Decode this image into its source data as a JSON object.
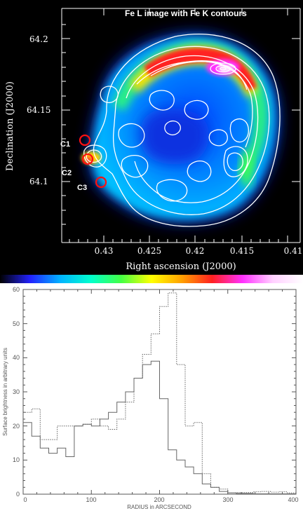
{
  "chart_data": [
    {
      "type": "heatmap",
      "title": "Fe L image with Fe K contours",
      "xlabel": "Right ascension (J2000)",
      "ylabel": "Declination (J2000)",
      "x_ticks": [
        "0.43",
        "0.425",
        "0.42",
        "0.415",
        "0.41"
      ],
      "y_ticks": [
        "64.2",
        "64.15",
        "64.1"
      ],
      "colorscale": [
        "#000000",
        "#2222ff",
        "#00b4ff",
        "#00ffcc",
        "#44ff44",
        "#ffff00",
        "#ffa000",
        "#ff2020",
        "#ff30ff",
        "#ffd0ff",
        "#ffffff"
      ],
      "regions": [
        {
          "label": "C1"
        },
        {
          "label": "C2"
        },
        {
          "label": "C3"
        }
      ]
    },
    {
      "type": "line",
      "xlabel": "RADIUS in ARCSECOND",
      "ylabel": "Surface brightness in arbitrary units",
      "xlim": [
        0,
        400
      ],
      "ylim": [
        0,
        60
      ],
      "x_ticks": [
        "0",
        "100",
        "200",
        "300",
        "400"
      ],
      "y_ticks": [
        "0",
        "10",
        "20",
        "30",
        "40",
        "50",
        "60"
      ],
      "bin_width": 12.5,
      "series": [
        {
          "style": "solid",
          "values": [
            21,
            17,
            13.5,
            12,
            13.5,
            11,
            20,
            20.5,
            20,
            22,
            24,
            27,
            30,
            34,
            38,
            39,
            28,
            13,
            10,
            8,
            6,
            3,
            2,
            0.8,
            0.4,
            0.2,
            0.2,
            0.1,
            0.1,
            0.1,
            0.1,
            0.1
          ]
        },
        {
          "style": "dotted",
          "values": [
            24,
            25,
            16,
            16,
            20,
            20,
            20,
            20.5,
            22,
            20,
            19,
            22,
            27,
            34,
            41,
            47,
            55,
            59,
            38,
            20,
            21,
            6,
            2,
            1.5,
            0.4,
            0.5,
            0.5,
            0.7,
            0.8,
            0.6,
            0.7,
            0.4
          ]
        }
      ]
    }
  ]
}
